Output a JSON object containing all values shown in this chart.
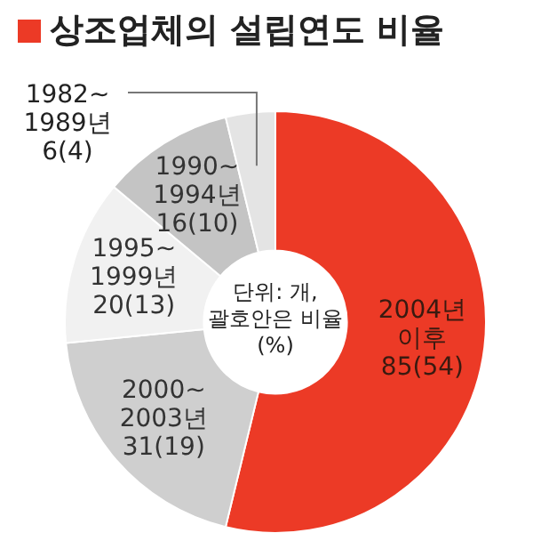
{
  "chart_data": {
    "type": "donut",
    "title": "상조업체의 설립연도 비율",
    "categories": [
      "2004년 이후",
      "2000~2003년",
      "1995~1999년",
      "1990~1994년",
      "1982~1989년"
    ],
    "values": [
      85,
      31,
      20,
      16,
      6
    ],
    "value_labels": [
      "85(54)",
      "31(19)",
      "20(13)",
      "16(10)",
      "6(4)"
    ],
    "colors": [
      "#ec3a26",
      "#cfcfcf",
      "#f1f1f1",
      "#c4c4c4",
      "#e4e4e4"
    ],
    "annotations": [
      "단위: 개, 괄호안은 비율(%)"
    ],
    "legend": false
  }
}
